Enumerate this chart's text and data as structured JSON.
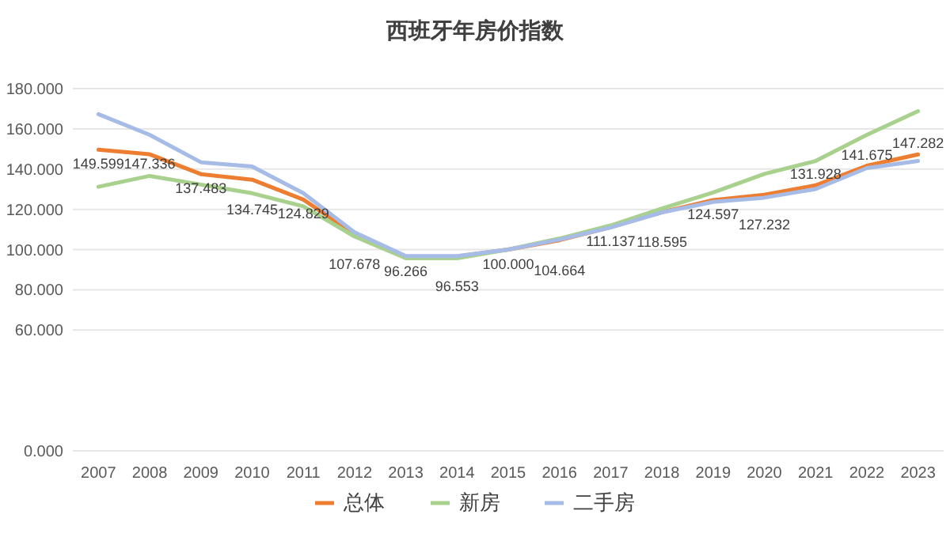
{
  "chart_data": {
    "type": "line",
    "title": "西班牙年房价指数",
    "categories": [
      "2007",
      "2008",
      "2009",
      "2010",
      "2011",
      "2012",
      "2013",
      "2014",
      "2015",
      "2016",
      "2017",
      "2018",
      "2019",
      "2020",
      "2021",
      "2022",
      "2023"
    ],
    "series": [
      {
        "name": "总体",
        "color": "#ed7d31",
        "values": [
          149.599,
          147.336,
          137.483,
          134.745,
          124.829,
          107.678,
          96.266,
          96.553,
          100.0,
          104.664,
          111.137,
          118.595,
          124.597,
          127.232,
          131.928,
          141.675,
          147.282
        ],
        "value_labels": [
          "149.599",
          "147.336",
          "137.483",
          "134.745",
          "124.829",
          "107.678",
          "96.266",
          "96.553",
          "100.000",
          "104.664",
          "111.137",
          "118.595",
          "124.597",
          "127.232",
          "131.928",
          "141.675",
          "147.282"
        ]
      },
      {
        "name": "新房",
        "color": "#a9d18e",
        "values": [
          131.2,
          136.6,
          132.3,
          128,
          121.5,
          106.5,
          95.7,
          95.7,
          100,
          105.5,
          112,
          120.4,
          128.4,
          137.6,
          144,
          157,
          168.8
        ]
      },
      {
        "name": "二手房",
        "color": "#a6bbe5",
        "values": [
          167.3,
          157,
          143.4,
          141.3,
          128,
          108.6,
          96.8,
          96.8,
          100,
          105,
          111,
          118.5,
          123.7,
          125.8,
          130.1,
          140.5,
          144
        ]
      }
    ],
    "ylim": [
      0,
      180
    ],
    "yticks": [
      {
        "value": 0,
        "label": "0.000"
      },
      {
        "value": 60,
        "label": "60.000"
      },
      {
        "value": 80,
        "label": "80.000"
      },
      {
        "value": 100,
        "label": "100.000"
      },
      {
        "value": 120,
        "label": "120.000"
      },
      {
        "value": 140,
        "label": "140.000"
      },
      {
        "value": 160,
        "label": "160.000"
      },
      {
        "value": 180,
        "label": "180.000"
      }
    ],
    "grid": "y",
    "legend": "bottom",
    "line_style": "solid",
    "marker": "none"
  }
}
